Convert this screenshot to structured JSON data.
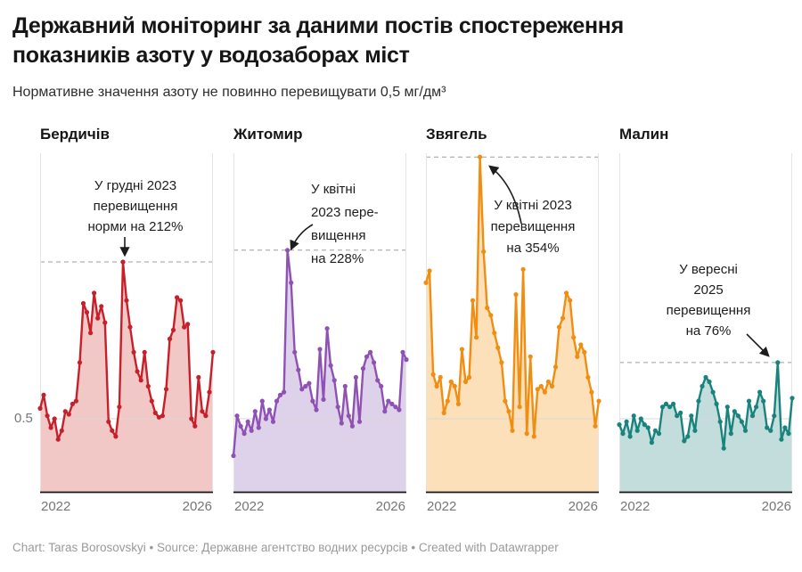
{
  "header": {
    "title_lines": [
      "Державний моніторинг за даними постів спостереження",
      "показників азоту у водозаборах міст"
    ],
    "subtitle": "Нормативне значення азоту не повинно перевищувати 0,5 мг/дм³"
  },
  "axis": {
    "y_tick_label": "0.5",
    "unit": "мг/дм³",
    "norm_value": 0.5
  },
  "footer": {
    "credit": "Chart: Taras Borosovskyi • Source: Державне агентство водних ресурсів • Created with Datawrapper"
  },
  "chart_data": [
    {
      "type": "line",
      "city": "Бердичів",
      "color": "#c7202a",
      "fill": "#f2c8c6",
      "norm": 0.5,
      "x_ticks": [
        "2022",
        "2026"
      ],
      "x_range": "monthly, Jan 2022 – Jan 2026",
      "ylim": [
        0,
        2.4
      ],
      "annotation_lines": [
        "У грудні 2023",
        "перевищення",
        "норми на 212%"
      ],
      "peak": {
        "month": "2023-12",
        "value": 1.56,
        "exceedance_pct": 212
      },
      "values": [
        0.57,
        0.66,
        0.52,
        0.44,
        0.5,
        0.36,
        0.42,
        0.55,
        0.53,
        0.6,
        0.62,
        0.88,
        1.28,
        1.22,
        1.08,
        1.35,
        1.18,
        1.26,
        1.15,
        0.48,
        0.42,
        0.38,
        0.58,
        1.56,
        1.3,
        1.12,
        0.95,
        0.82,
        0.76,
        0.95,
        0.72,
        0.62,
        0.54,
        0.51,
        0.52,
        0.7,
        1.04,
        1.1,
        1.32,
        1.3,
        1.12,
        1.14,
        0.5,
        0.45,
        0.78,
        0.55,
        0.52,
        0.68,
        0.95
      ]
    },
    {
      "type": "line",
      "city": "Житомир",
      "color": "#8f51b3",
      "fill": "#ded2ea",
      "norm": 0.5,
      "x_ticks": [
        "2022",
        "2026"
      ],
      "x_range": "monthly, Jan 2022 – Jan 2026",
      "ylim": [
        0,
        2.4
      ],
      "annotation_lines": [
        "У квітні",
        "2023 пере-",
        "вищення",
        "на 228%"
      ],
      "peak": {
        "month": "2023-04",
        "value": 1.64,
        "exceedance_pct": 228
      },
      "values": [
        0.25,
        0.52,
        0.45,
        0.4,
        0.48,
        0.42,
        0.55,
        0.44,
        0.62,
        0.5,
        0.56,
        0.48,
        0.62,
        0.66,
        0.68,
        1.64,
        1.42,
        0.95,
        0.83,
        0.7,
        0.72,
        0.74,
        0.62,
        0.56,
        0.97,
        0.63,
        1.11,
        0.86,
        0.76,
        0.58,
        0.47,
        0.72,
        0.52,
        0.45,
        0.78,
        0.48,
        0.84,
        0.92,
        0.95,
        0.88,
        0.76,
        0.72,
        0.55,
        0.62,
        0.6,
        0.58,
        0.56,
        0.95,
        0.9
      ]
    },
    {
      "type": "line",
      "city": "Звягель",
      "color": "#f18d10",
      "fill": "#fbe0ba",
      "norm": 0.5,
      "x_ticks": [
        "2022",
        "2026"
      ],
      "x_range": "monthly, Jan 2022 – Jan 2026",
      "ylim": [
        0,
        2.4
      ],
      "annotation_lines": [
        "У квітні 2023",
        "перевищення",
        "на 354%"
      ],
      "peak": {
        "month": "2023-04",
        "value": 2.27,
        "exceedance_pct": 354
      },
      "values": [
        1.42,
        1.5,
        0.8,
        0.72,
        0.78,
        0.54,
        0.62,
        0.75,
        0.72,
        0.6,
        0.97,
        0.75,
        0.78,
        1.3,
        1.05,
        2.27,
        1.63,
        1.25,
        1.2,
        1.08,
        0.98,
        0.88,
        0.62,
        0.55,
        0.42,
        1.34,
        0.58,
        1.51,
        0.4,
        0.92,
        0.38,
        0.7,
        0.72,
        0.68,
        0.75,
        0.72,
        0.85,
        1.12,
        1.18,
        1.35,
        1.3,
        1.05,
        0.92,
        1.0,
        0.95,
        0.78,
        0.68,
        0.45,
        0.62
      ]
    },
    {
      "type": "line",
      "city": "Малин",
      "color": "#19837e",
      "fill": "#c2dddb",
      "norm": 0.5,
      "x_ticks": [
        "2022",
        "2026"
      ],
      "x_range": "monthly, Jan 2022 – Jan 2026",
      "ylim": [
        0,
        2.4
      ],
      "annotation_lines": [
        "У вересні",
        "2025",
        "перевищення",
        "на 76%"
      ],
      "peak": {
        "month": "2025-09",
        "value": 0.88,
        "exceedance_pct": 76
      },
      "values": [
        0.46,
        0.4,
        0.48,
        0.38,
        0.52,
        0.42,
        0.5,
        0.46,
        0.44,
        0.34,
        0.42,
        0.4,
        0.58,
        0.6,
        0.58,
        0.6,
        0.52,
        0.54,
        0.35,
        0.38,
        0.52,
        0.42,
        0.62,
        0.72,
        0.78,
        0.75,
        0.68,
        0.6,
        0.48,
        0.3,
        0.58,
        0.4,
        0.55,
        0.52,
        0.48,
        0.42,
        0.62,
        0.52,
        0.58,
        0.68,
        0.62,
        0.44,
        0.42,
        0.52,
        0.88,
        0.36,
        0.44,
        0.4,
        0.64
      ]
    }
  ]
}
